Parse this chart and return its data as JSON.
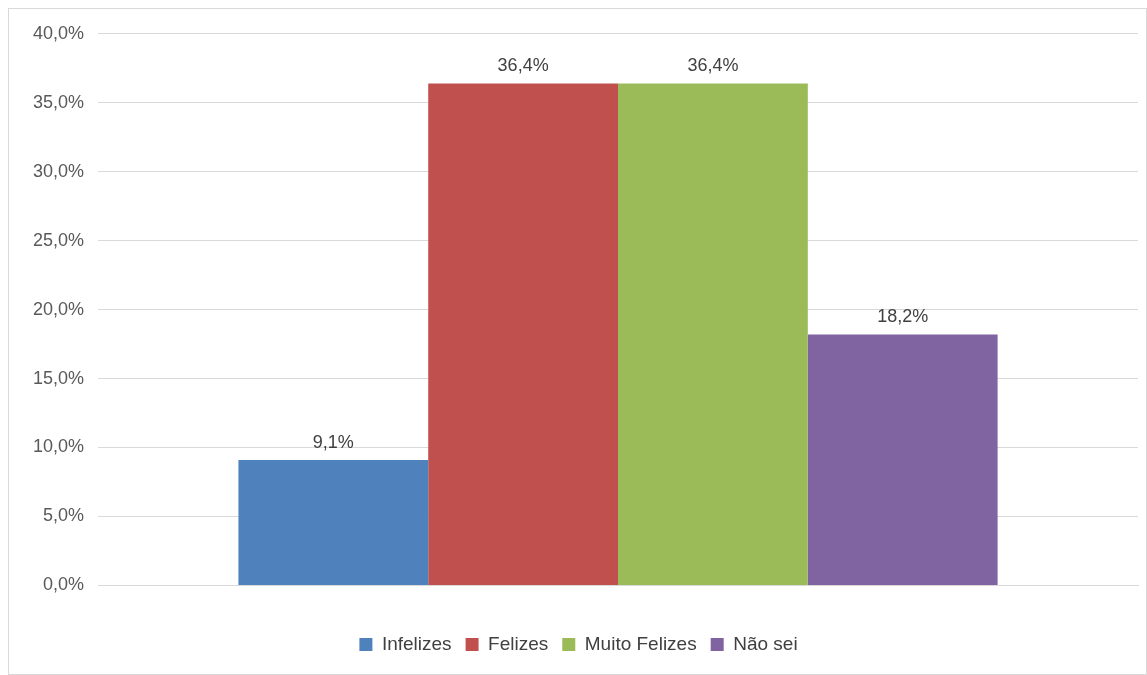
{
  "chart_data": {
    "type": "bar",
    "categories": [
      null
    ],
    "series": [
      {
        "name": "Infelizes",
        "color": "#4f81bd",
        "values": [
          9.1
        ],
        "value_labels": [
          "9,1%"
        ]
      },
      {
        "name": "Felizes",
        "color": "#c0504d",
        "values": [
          36.4
        ],
        "value_labels": [
          "36,4%"
        ]
      },
      {
        "name": "Muito Felizes",
        "color": "#9bbb59",
        "values": [
          36.4
        ],
        "value_labels": [
          "36,4%"
        ]
      },
      {
        "name": "Não sei",
        "color": "#8064a2",
        "values": [
          18.2
        ],
        "value_labels": [
          "18,2%"
        ]
      }
    ],
    "ylim": [
      0,
      40
    ],
    "yticks": [
      {
        "value": 0,
        "label": "0,0%"
      },
      {
        "value": 5,
        "label": "5,0%"
      },
      {
        "value": 10,
        "label": "10,0%"
      },
      {
        "value": 15,
        "label": "15,0%"
      },
      {
        "value": 20,
        "label": "20,0%"
      },
      {
        "value": 25,
        "label": "25,0%"
      },
      {
        "value": 30,
        "label": "30,0%"
      },
      {
        "value": 35,
        "label": "35,0%"
      },
      {
        "value": 40,
        "label": "40,0%"
      }
    ],
    "grid": "y",
    "legend": "bottom"
  }
}
